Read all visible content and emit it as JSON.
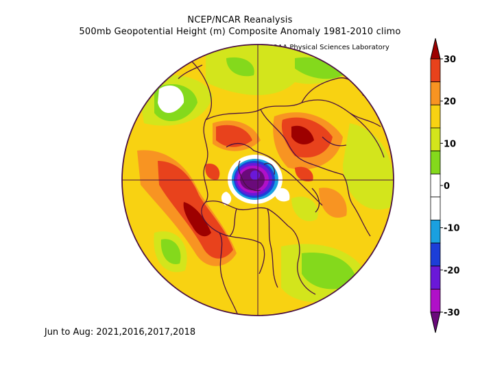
{
  "title": {
    "line1": "NCEP/NCAR Reanalysis",
    "line2": "500mb Geopotential Height (m) Composite Anomaly 1981-2010 climo"
  },
  "credit": "NOAA Physical Sciences Laboratory",
  "footer": "Jun to Aug: 2021,2016,2017,2018",
  "colorbar": {
    "ticks": [
      "30",
      "20",
      "10",
      "0",
      "-10",
      "-20",
      "-30"
    ],
    "colors": [
      "#9d0000",
      "#e8421c",
      "#f89422",
      "#f8d212",
      "#d3e51c",
      "#84d91c",
      "#ffffff",
      "#ffffff",
      "#1aa0e0",
      "#1c3ed8",
      "#6a18d8",
      "#b010c8",
      "#6a0a7a"
    ]
  },
  "map": {
    "projection": "north-polar-stereographic",
    "field_colors": {
      "anomaly_30": "#9d0000",
      "anomaly_25": "#e8421c",
      "anomaly_20": "#f89422",
      "anomaly_15": "#f8d212",
      "anomaly_10": "#d3e51c",
      "anomaly_5": "#84d91c",
      "anomaly_0": "#ffffff",
      "anomaly_neg10": "#1aa0e0",
      "anomaly_neg15": "#1c3ed8",
      "anomaly_neg20": "#6a18d8",
      "anomaly_neg25": "#b010c8",
      "anomaly_neg30": "#6a0a7a"
    },
    "outline_color": "#4a1040"
  }
}
